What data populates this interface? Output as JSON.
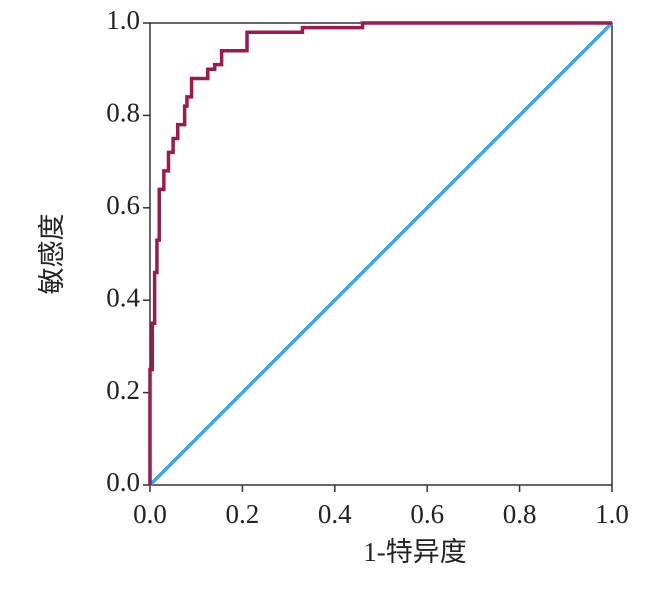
{
  "chart_data": {
    "type": "line",
    "xlabel": "1-特异度",
    "ylabel": "敏感度",
    "xlim": [
      0,
      1
    ],
    "ylim": [
      0,
      1
    ],
    "xticks": [
      {
        "value": 0,
        "label": "0.0"
      },
      {
        "value": 0.2,
        "label": "0.2"
      },
      {
        "value": 0.4,
        "label": "0.4"
      },
      {
        "value": 0.6,
        "label": "0.6"
      },
      {
        "value": 0.8,
        "label": "0.8"
      },
      {
        "value": 1,
        "label": "1.0"
      }
    ],
    "yticks": [
      {
        "value": 0,
        "label": "0.0"
      },
      {
        "value": 0.2,
        "label": "0.2"
      },
      {
        "value": 0.4,
        "label": "0.4"
      },
      {
        "value": 0.6,
        "label": "0.6"
      },
      {
        "value": 0.8,
        "label": "0.8"
      },
      {
        "value": 1,
        "label": "1.0"
      }
    ],
    "series": [
      {
        "color": "#9b1b4f",
        "x": [
          0,
          0,
          0.005,
          0.005,
          0.01,
          0.01,
          0.015,
          0.015,
          0.02,
          0.02,
          0.03,
          0.03,
          0.04,
          0.04,
          0.05,
          0.05,
          0.06,
          0.06,
          0.075,
          0.075,
          0.08,
          0.08,
          0.09,
          0.09,
          0.125,
          0.125,
          0.14,
          0.14,
          0.155,
          0.155,
          0.21,
          0.21,
          0.33,
          0.33,
          0.46,
          0.46,
          1.0
        ],
        "values": [
          0,
          0.25,
          0.25,
          0.35,
          0.35,
          0.46,
          0.46,
          0.53,
          0.53,
          0.64,
          0.64,
          0.68,
          0.68,
          0.72,
          0.72,
          0.75,
          0.75,
          0.78,
          0.78,
          0.82,
          0.82,
          0.84,
          0.84,
          0.88,
          0.88,
          0.9,
          0.9,
          0.91,
          0.91,
          0.94,
          0.94,
          0.98,
          0.98,
          0.99,
          0.99,
          1.0,
          1.0
        ]
      },
      {
        "color": "#3aa8e8",
        "x": [
          0,
          1
        ],
        "values": [
          0,
          1
        ]
      }
    ]
  }
}
